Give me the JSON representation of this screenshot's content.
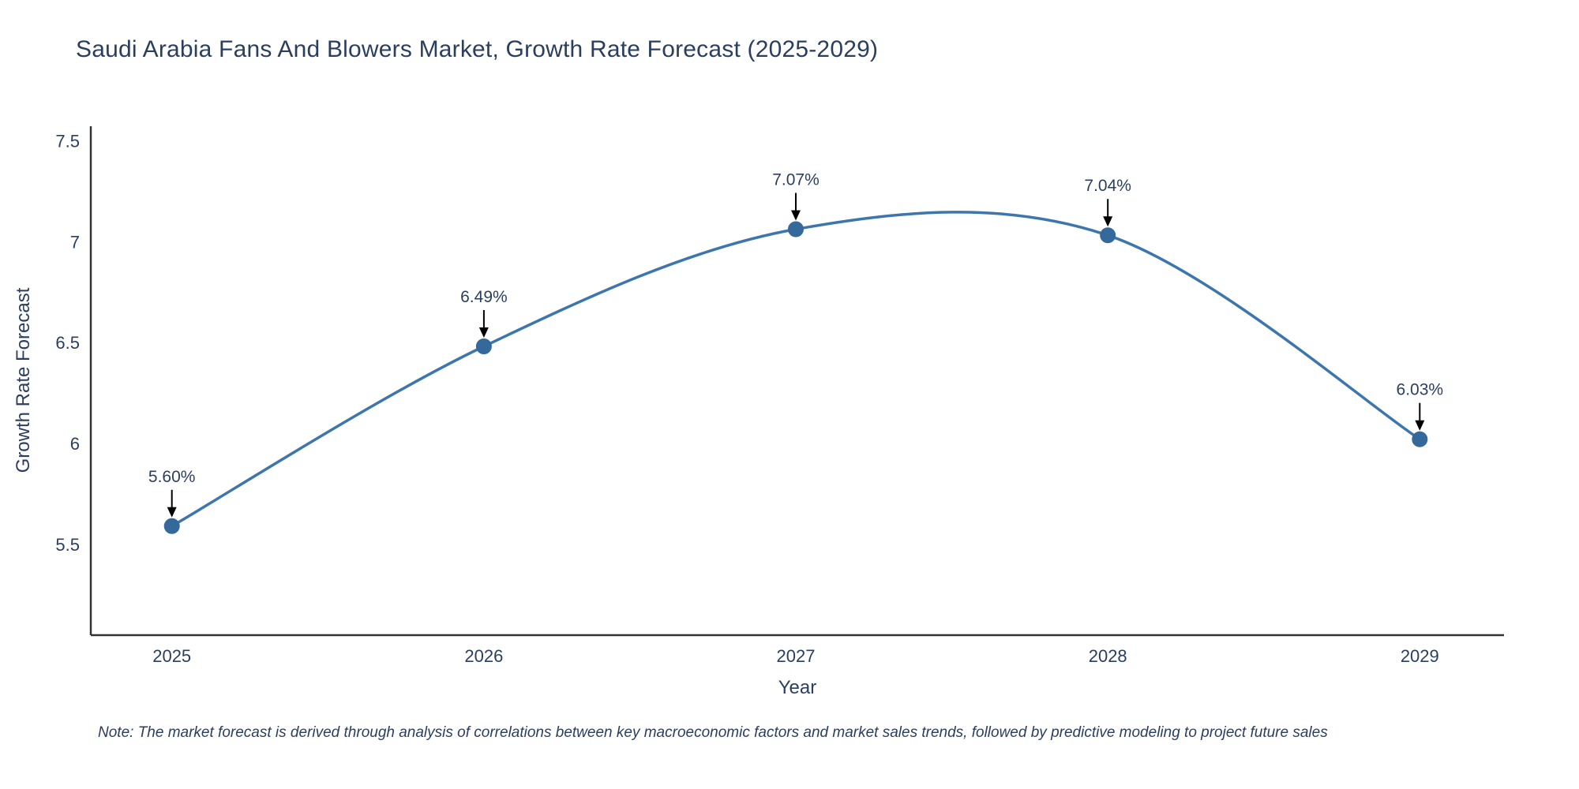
{
  "page": {
    "note": "Note: The market forecast is derived through analysis of correlations between key macroeconomic factors and market sales trends, followed by predictive modeling to project future sales"
  },
  "chart_data": {
    "type": "line",
    "title": "Saudi Arabia Fans And Blowers Market, Growth Rate Forecast (2025-2029)",
    "xlabel": "Year",
    "ylabel": "Growth Rate Forecast",
    "x": [
      2025,
      2026,
      2027,
      2028,
      2029
    ],
    "values": [
      5.6,
      6.49,
      7.07,
      7.04,
      6.03
    ],
    "point_labels": [
      "5.60%",
      "6.49%",
      "7.07%",
      "7.04%",
      "6.03%"
    ],
    "xtick_labels": [
      "2025",
      "2026",
      "2027",
      "2028",
      "2029"
    ],
    "yticks": [
      5.5,
      6,
      6.5,
      7,
      7.5
    ],
    "ytick_labels": [
      "5.5",
      "6",
      "6.5",
      "7",
      "7.5"
    ],
    "xlim": [
      2024.74,
      2029.27
    ],
    "ylim": [
      5.06,
      7.58
    ],
    "grid": false,
    "legend": "none",
    "line_shape": "spline",
    "colors": {
      "line": "#3d76ad",
      "marker": "#35699c",
      "axis": "#333333",
      "text": "#2a3f5f",
      "annotation_arrow": "#000000",
      "background": "#ffffff"
    }
  }
}
